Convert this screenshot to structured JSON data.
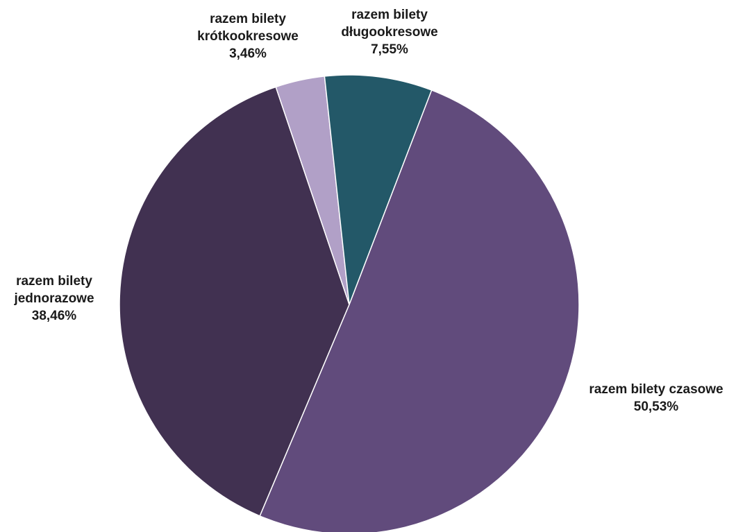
{
  "chart_data": {
    "type": "pie",
    "slices": [
      {
        "label_lines": [
          "razem bilety czasowe"
        ],
        "percent_label": "50,53%",
        "value": 50.53,
        "color": "#614b7c"
      },
      {
        "label_lines": [
          "razem bilety",
          "jednorazowe"
        ],
        "percent_label": "38,46%",
        "value": 38.46,
        "color": "#413151"
      },
      {
        "label_lines": [
          "razem bilety",
          "krótkookresowe"
        ],
        "percent_label": "3,46%",
        "value": 3.46,
        "color": "#b1a0c7"
      },
      {
        "label_lines": [
          "razem bilety",
          "długookresowe"
        ],
        "percent_label": "7,55%",
        "value": 7.55,
        "color": "#235868"
      }
    ]
  }
}
